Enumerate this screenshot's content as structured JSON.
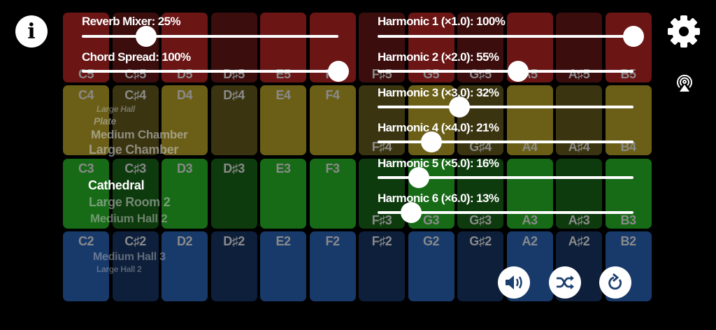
{
  "keyboard": {
    "notes": [
      "C",
      "C♯",
      "D",
      "D♯",
      "E",
      "F",
      "F♯",
      "G",
      "G♯",
      "A",
      "A♯",
      "B"
    ],
    "rows": [
      {
        "octave": "5",
        "natural_color": "#6b1515",
        "sharp_color": "#3b0d0d"
      },
      {
        "octave": "4",
        "natural_color": "#6b5f17",
        "sharp_color": "#3a3410"
      },
      {
        "octave": "3",
        "natural_color": "#176b17",
        "sharp_color": "#0e3b0e"
      },
      {
        "octave": "2",
        "natural_color": "#173a6b",
        "sharp_color": "#0d1f3b"
      }
    ]
  },
  "sliders_left": [
    {
      "label": "Reverb Mixer: 25%",
      "value": 0.25
    },
    {
      "label": "Chord Spread: 100%",
      "value": 1.0
    }
  ],
  "sliders_right": [
    {
      "label": "Harmonic 1 (×1.0): 100%",
      "value": 1.0
    },
    {
      "label": "Harmonic 2 (×2.0): 55%",
      "value": 0.55
    },
    {
      "label": "Harmonic 3 (×3.0): 32%",
      "value": 0.32
    },
    {
      "label": "Harmonic 4 (×4.0): 21%",
      "value": 0.21
    },
    {
      "label": "Harmonic 5 (×5.0): 16%",
      "value": 0.16
    },
    {
      "label": "Harmonic 6 (×6.0): 13%",
      "value": 0.13
    }
  ],
  "reverb_picker": {
    "selected": "Cathedral",
    "items": [
      "Large Hall",
      "Plate",
      "Medium Chamber",
      "Large Chamber",
      "Cathedral",
      "Large Room 2",
      "Medium Hall 2",
      "Medium Hall 3",
      "Large Hall 2"
    ]
  },
  "icons": {
    "info": "i",
    "settings": "gear-icon",
    "airplay": "airplay-icon",
    "sound": "speaker-icon",
    "shuffle": "shuffle-icon",
    "reset": "rotate-icon"
  },
  "accent_color": "#1a3f6e"
}
